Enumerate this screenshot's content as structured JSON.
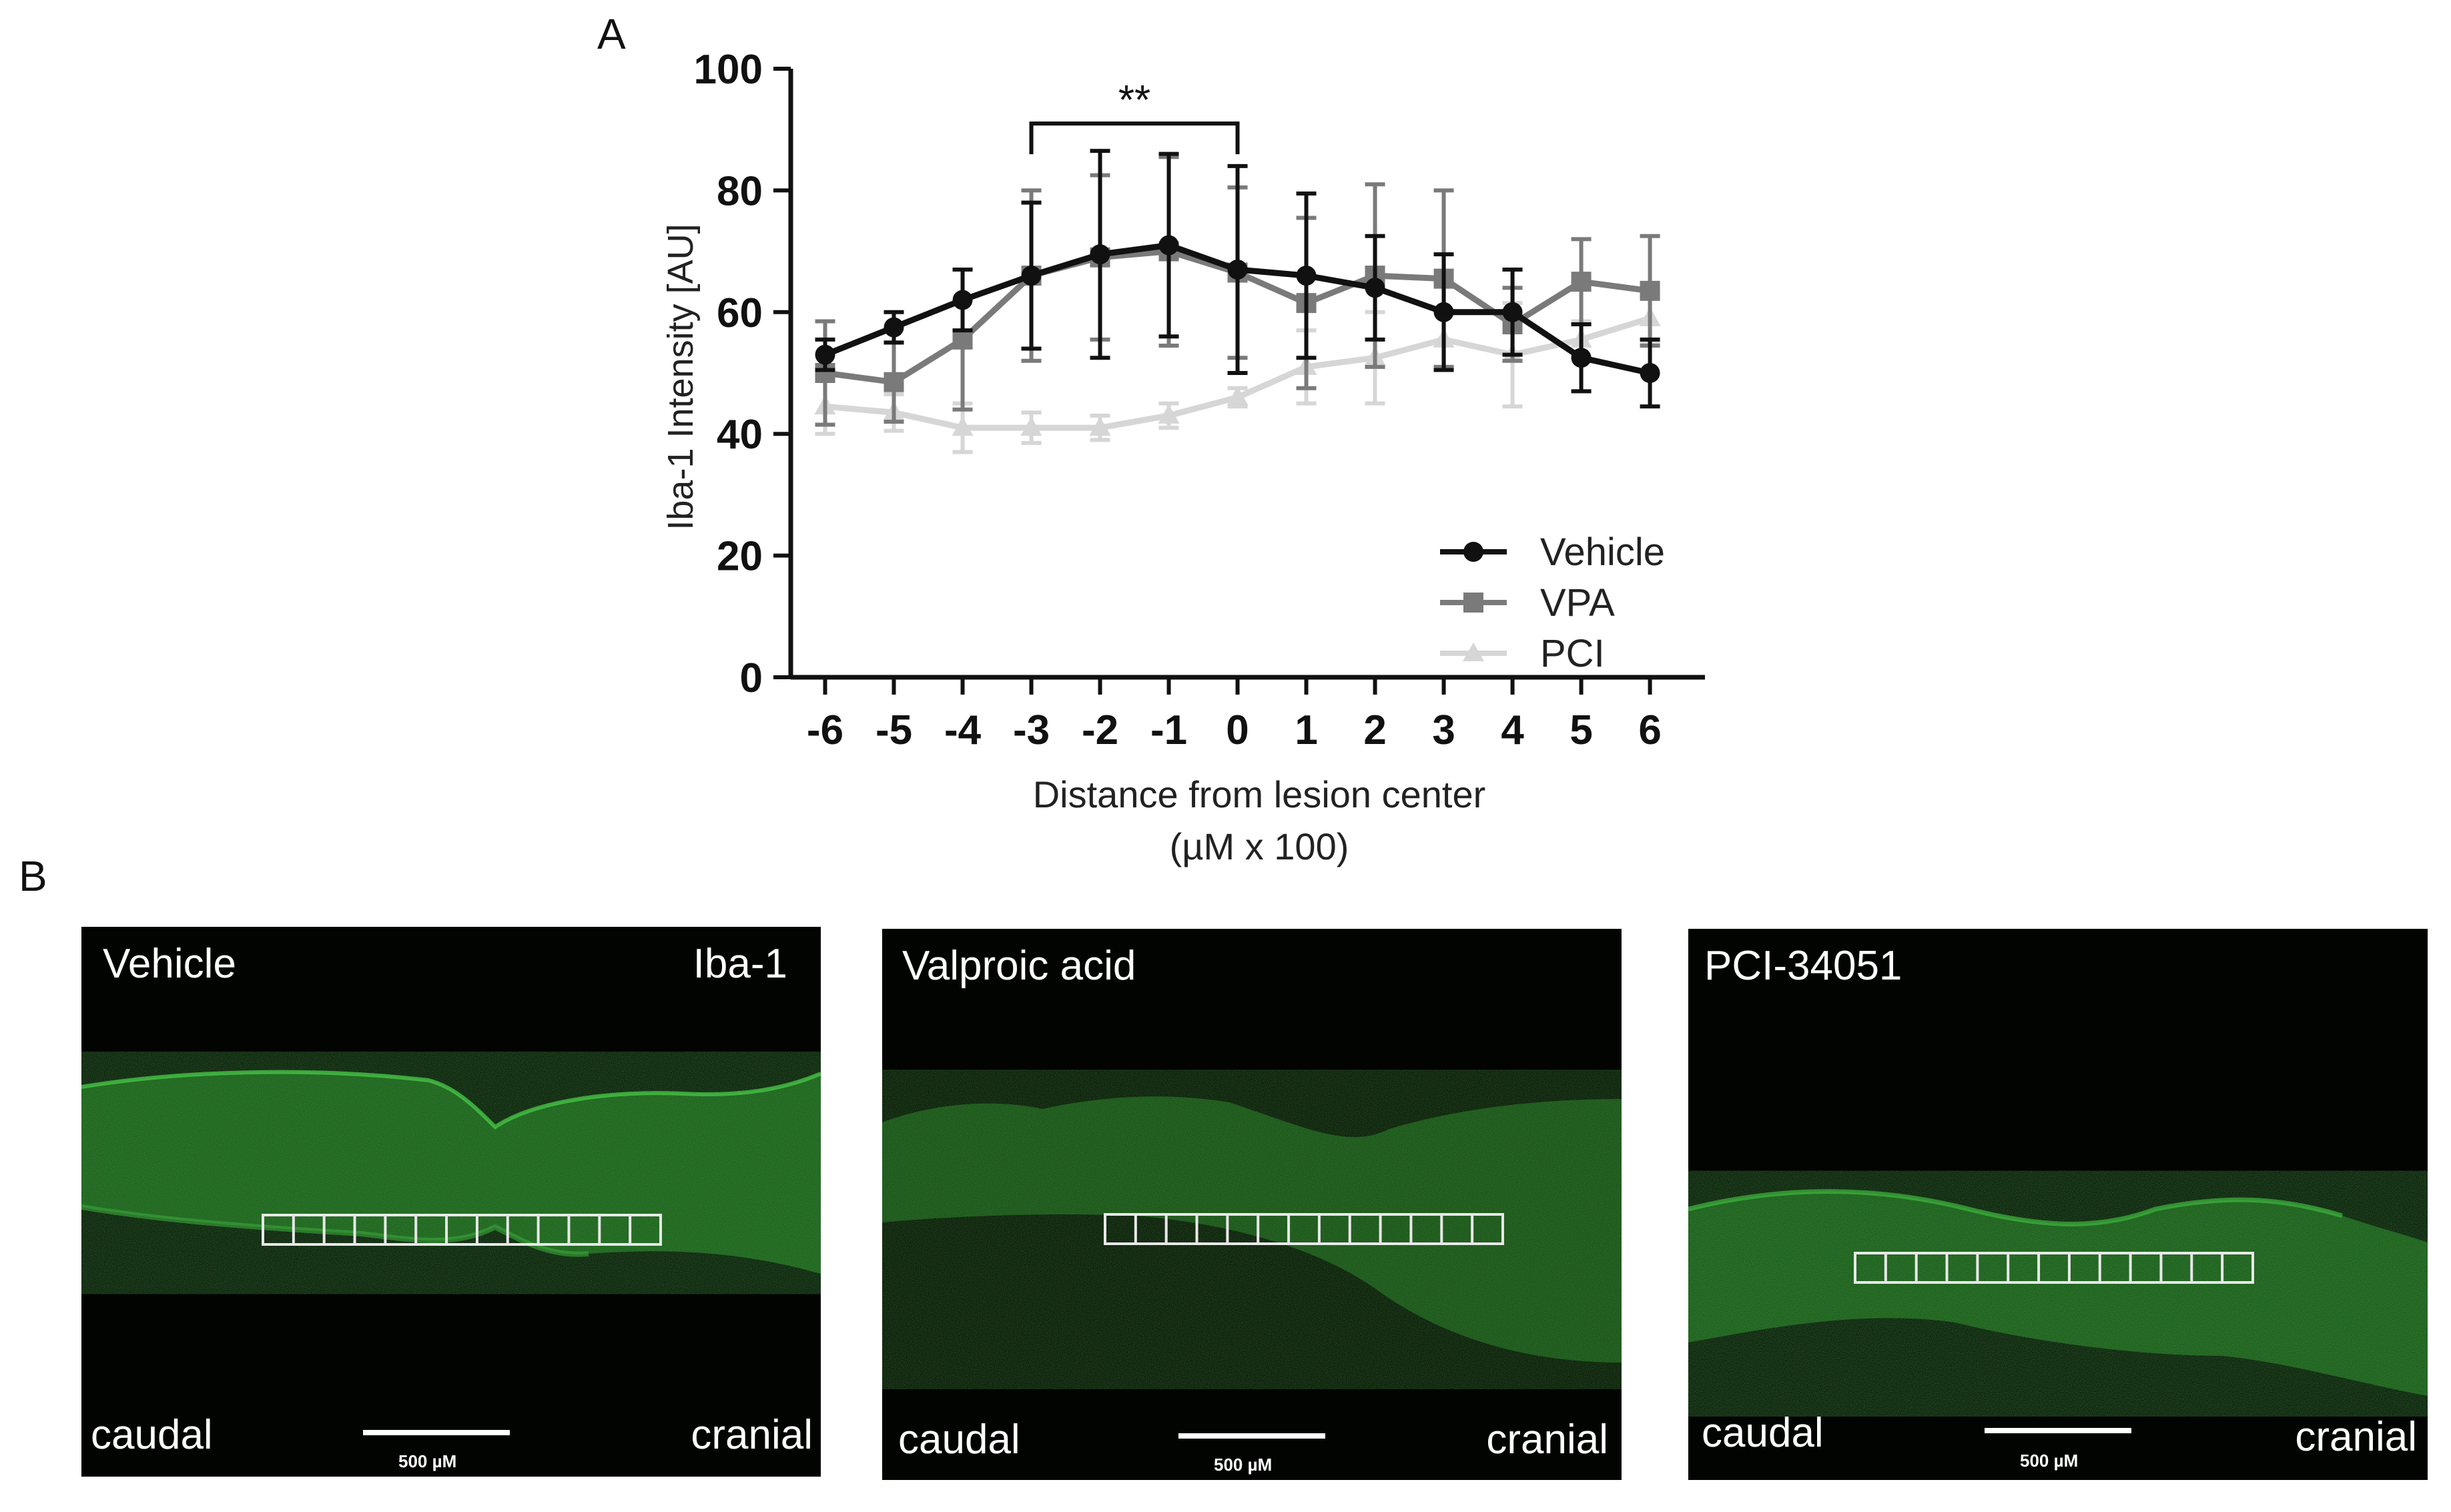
{
  "panel_labels": {
    "a": "A",
    "b": "B"
  },
  "chart_data": {
    "type": "line",
    "title": "",
    "xlabel": "Distance from lesion center",
    "xlabel_line2": "(µM x 100)",
    "ylabel": "Iba-1 Intensity [AU]",
    "x": [
      -6,
      -5,
      -4,
      -3,
      -2,
      -1,
      0,
      1,
      2,
      3,
      4,
      5,
      6
    ],
    "x_tick_labels": [
      "-6",
      "-5",
      "-4",
      "-3",
      "-2",
      "-1",
      "0",
      "1",
      "2",
      "3",
      "4",
      "5",
      "6"
    ],
    "ylim": [
      0,
      100
    ],
    "y_ticks": [
      0,
      20,
      40,
      60,
      80,
      100
    ],
    "y_tick_labels": [
      "0",
      "20",
      "40",
      "60",
      "80",
      "100"
    ],
    "grid": false,
    "legend_position": "bottom-right",
    "series": [
      {
        "name": "Vehicle",
        "marker": "circle",
        "color": "#111111",
        "values": [
          53,
          57.5,
          62,
          66,
          69.5,
          71,
          67,
          66,
          64,
          60,
          60,
          52.5,
          50
        ],
        "errors": [
          2.5,
          2.5,
          5,
          12,
          17,
          15,
          17,
          13.5,
          8.5,
          9.5,
          7,
          5.5,
          5.5
        ]
      },
      {
        "name": "VPA",
        "marker": "square",
        "color": "#7a7a7a",
        "values": [
          50,
          48.5,
          55.5,
          66,
          69,
          70,
          66.5,
          61.5,
          66,
          65.5,
          58,
          65,
          63.5
        ],
        "errors": [
          8.5,
          6.5,
          11.5,
          14,
          13.5,
          15.5,
          14,
          14,
          15,
          14.5,
          6,
          7,
          9
        ]
      },
      {
        "name": "PCI",
        "marker": "triangle",
        "color": "#d6d6d6",
        "values": [
          44.5,
          43.5,
          41,
          41,
          41,
          43,
          46,
          51,
          52.5,
          55.5,
          53,
          55.5,
          59
        ],
        "errors": [
          4.5,
          3,
          4,
          2.5,
          2,
          2,
          1.5,
          6,
          7.5,
          4.5,
          8.5,
          3,
          4
        ]
      }
    ],
    "annotations": [
      {
        "text": "**",
        "x_start": -3,
        "x_end": 0,
        "y": 91
      }
    ]
  },
  "micrographs": [
    {
      "treatment": "Vehicle",
      "marker": "Iba-1",
      "left_label": "caudal",
      "right_label": "cranial",
      "scale_label": "500 µM"
    },
    {
      "treatment": "Valproic acid",
      "marker": "",
      "left_label": "caudal",
      "right_label": "cranial",
      "scale_label": "500 µM"
    },
    {
      "treatment": "PCI-34051",
      "marker": "",
      "left_label": "caudal",
      "right_label": "cranial",
      "scale_label": "500 µM"
    }
  ],
  "colors": {
    "stain_green": "#2fae2f",
    "background": "#020402",
    "roi_grid": "#e8e8e8"
  }
}
